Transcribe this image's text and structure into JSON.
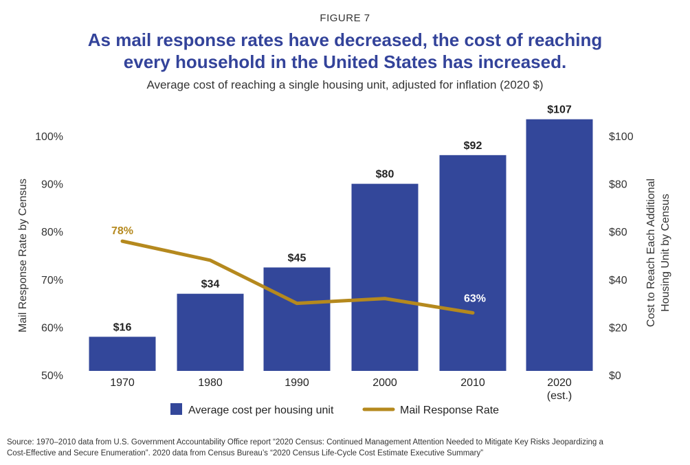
{
  "figure_label": "FIGURE 7",
  "title_line1": "As mail response rates have decreased, the cost of reaching",
  "title_line2": "every household in the United States has increased.",
  "subtitle": "Average cost of reaching a single housing unit, adjusted for inflation (2020 $)",
  "source_line1": "Source: 1970–2010 data from U.S. Government Accountability Office report “2020 Census: Continued Management Attention Needed to Mitigate Key Risks Jeopardizing a",
  "source_line2": "Cost-Effective and Secure Enumeration”. 2020 data from Census Bureau’s “2020 Census Life-Cycle Cost Estimate Executive Summary”",
  "colors": {
    "bar": "#33479a",
    "line": "#b5891e",
    "title": "#33439a"
  },
  "chart_data": {
    "type": "bar",
    "categories": [
      "1970",
      "1980",
      "1990",
      "2000",
      "2010",
      "2020"
    ],
    "category_sublabels": [
      "",
      "",
      "",
      "",
      "",
      "(est.)"
    ],
    "series": [
      {
        "name": "Average cost per housing unit",
        "type": "bar",
        "axis": "right",
        "values": [
          16,
          34,
          45,
          80,
          92,
          107
        ],
        "labels": [
          "$16",
          "$34",
          "$45",
          "$80",
          "$92",
          "$107"
        ]
      },
      {
        "name": "Mail Response Rate",
        "type": "line",
        "axis": "left",
        "values": [
          78,
          74,
          65,
          66,
          63,
          null
        ],
        "labels": [
          "78%",
          "",
          "",
          "",
          "63%",
          ""
        ]
      }
    ],
    "left_axis": {
      "label": "Mail Response Rate by Census",
      "range": [
        50,
        100
      ],
      "ticks": [
        50,
        60,
        70,
        80,
        90,
        100
      ],
      "tick_labels": [
        "50%",
        "60%",
        "70%",
        "80%",
        "90%",
        "100%"
      ]
    },
    "right_axis": {
      "label_line1": "Cost to Reach Each Additional",
      "label_line2": "Housing Unit by Census",
      "range": [
        0,
        100
      ],
      "ticks": [
        0,
        20,
        40,
        60,
        80,
        100
      ],
      "tick_labels": [
        "$0",
        "$20",
        "$40",
        "$60",
        "$80",
        "$100"
      ]
    },
    "legend": [
      "Average cost per housing unit",
      "Mail Response Rate"
    ],
    "legend_position": "bottom",
    "grid": false
  }
}
